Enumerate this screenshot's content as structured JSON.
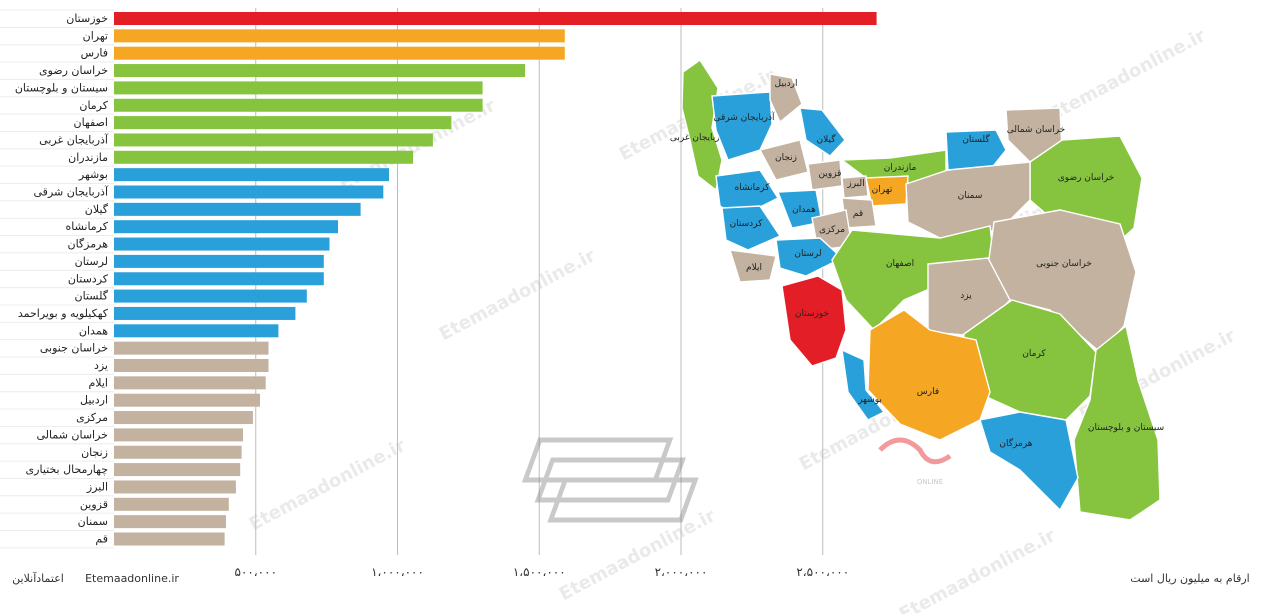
{
  "chart_data": {
    "type": "bar",
    "orientation": "horizontal",
    "unit_note": "ارقام به میلیون ریال است",
    "xlim": [
      0,
      2800000
    ],
    "x_ticks": [
      {
        "value": 500000,
        "label": "۵۰۰،۰۰۰"
      },
      {
        "value": 1000000,
        "label": "۱،۰۰۰،۰۰۰"
      },
      {
        "value": 1500000,
        "label": "۱،۵۰۰،۰۰۰"
      },
      {
        "value": 2000000,
        "label": "۲،۰۰۰،۰۰۰"
      },
      {
        "value": 2500000,
        "label": "۲،۵۰۰،۰۰۰"
      }
    ],
    "grid": true,
    "colors": {
      "red": "#e31e26",
      "orange": "#f5a623",
      "green": "#86c440",
      "blue": "#29a0da",
      "tan": "#c2b29f"
    },
    "bars": [
      {
        "label": "خوزستان",
        "value": 2690000,
        "color": "red"
      },
      {
        "label": "تهران",
        "value": 1590000,
        "color": "orange"
      },
      {
        "label": "فارس",
        "value": 1590000,
        "color": "orange"
      },
      {
        "label": "خراسان رضوی",
        "value": 1450000,
        "color": "green"
      },
      {
        "label": "سیستان و بلوچستان",
        "value": 1300000,
        "color": "green"
      },
      {
        "label": "کرمان",
        "value": 1300000,
        "color": "green"
      },
      {
        "label": "اصفهان",
        "value": 1190000,
        "color": "green"
      },
      {
        "label": "آذربایجان غربی",
        "value": 1125000,
        "color": "green"
      },
      {
        "label": "مازندران",
        "value": 1055000,
        "color": "green"
      },
      {
        "label": "بوشهر",
        "value": 970000,
        "color": "blue"
      },
      {
        "label": "آذربایجان شرقی",
        "value": 950000,
        "color": "blue"
      },
      {
        "label": "گیلان",
        "value": 870000,
        "color": "blue"
      },
      {
        "label": "کرمانشاه",
        "value": 790000,
        "color": "blue"
      },
      {
        "label": "هرمزگان",
        "value": 760000,
        "color": "blue"
      },
      {
        "label": "لرستان",
        "value": 740000,
        "color": "blue"
      },
      {
        "label": "کردستان",
        "value": 740000,
        "color": "blue"
      },
      {
        "label": "گلستان",
        "value": 680000,
        "color": "blue"
      },
      {
        "label": "کهکیلویه و بویراحمد",
        "value": 640000,
        "color": "blue"
      },
      {
        "label": "همدان",
        "value": 580000,
        "color": "blue"
      },
      {
        "label": "خراسان جنوبی",
        "value": 545000,
        "color": "tan"
      },
      {
        "label": "یزد",
        "value": 545000,
        "color": "tan"
      },
      {
        "label": "ایلام",
        "value": 535000,
        "color": "tan"
      },
      {
        "label": "اردبیل",
        "value": 515000,
        "color": "tan"
      },
      {
        "label": "مرکزی",
        "value": 490000,
        "color": "tan"
      },
      {
        "label": "خراسان شمالی",
        "value": 455000,
        "color": "tan"
      },
      {
        "label": "زنجان",
        "value": 450000,
        "color": "tan"
      },
      {
        "label": "چهارمحال بختیاری",
        "value": 445000,
        "color": "tan"
      },
      {
        "label": "البرز",
        "value": 430000,
        "color": "tan"
      },
      {
        "label": "قزوین",
        "value": 405000,
        "color": "tan"
      },
      {
        "label": "سمنان",
        "value": 395000,
        "color": "tan"
      },
      {
        "label": "قم",
        "value": 390000,
        "color": "tan"
      }
    ]
  },
  "footer": {
    "site": "Etemaadonline.ir",
    "brand": "اعتمادآنلاین"
  },
  "watermark": "Etemaadonline.ir",
  "map_logo_text": "ONLINE",
  "map": {
    "regions": [
      {
        "name": "آذربایجان غربی",
        "color": "green"
      },
      {
        "name": "آذربایجان شرقی",
        "color": "blue"
      },
      {
        "name": "اردبیل",
        "color": "tan"
      },
      {
        "name": "گیلان",
        "color": "blue"
      },
      {
        "name": "زنجان",
        "color": "tan"
      },
      {
        "name": "مازندران",
        "color": "green"
      },
      {
        "name": "گلستان",
        "color": "blue"
      },
      {
        "name": "خراسان شمالی",
        "color": "tan"
      },
      {
        "name": "خراسان رضوی",
        "color": "green"
      },
      {
        "name": "کرمانشاه",
        "color": "blue"
      },
      {
        "name": "همدان",
        "color": "blue"
      },
      {
        "name": "قزوین",
        "color": "tan"
      },
      {
        "name": "البرز",
        "color": "tan"
      },
      {
        "name": "تهران",
        "color": "orange"
      },
      {
        "name": "قم",
        "color": "tan"
      },
      {
        "name": "مرکزی",
        "color": "tan"
      },
      {
        "name": "سمنان",
        "color": "tan"
      },
      {
        "name": "کردستان",
        "color": "blue"
      },
      {
        "name": "لرستان",
        "color": "blue"
      },
      {
        "name": "ایلام",
        "color": "tan"
      },
      {
        "name": "اصفهان",
        "color": "green"
      },
      {
        "name": "خراسان جنوبی",
        "color": "tan"
      },
      {
        "name": "یزد",
        "color": "tan"
      },
      {
        "name": "خوزستان",
        "color": "red"
      },
      {
        "name": "کرمان",
        "color": "green"
      },
      {
        "name": "فارس",
        "color": "orange"
      },
      {
        "name": "بوشهر",
        "color": "blue"
      },
      {
        "name": "سیستان و بلوچستان",
        "color": "green"
      },
      {
        "name": "هرمزگان",
        "color": "blue"
      }
    ]
  }
}
